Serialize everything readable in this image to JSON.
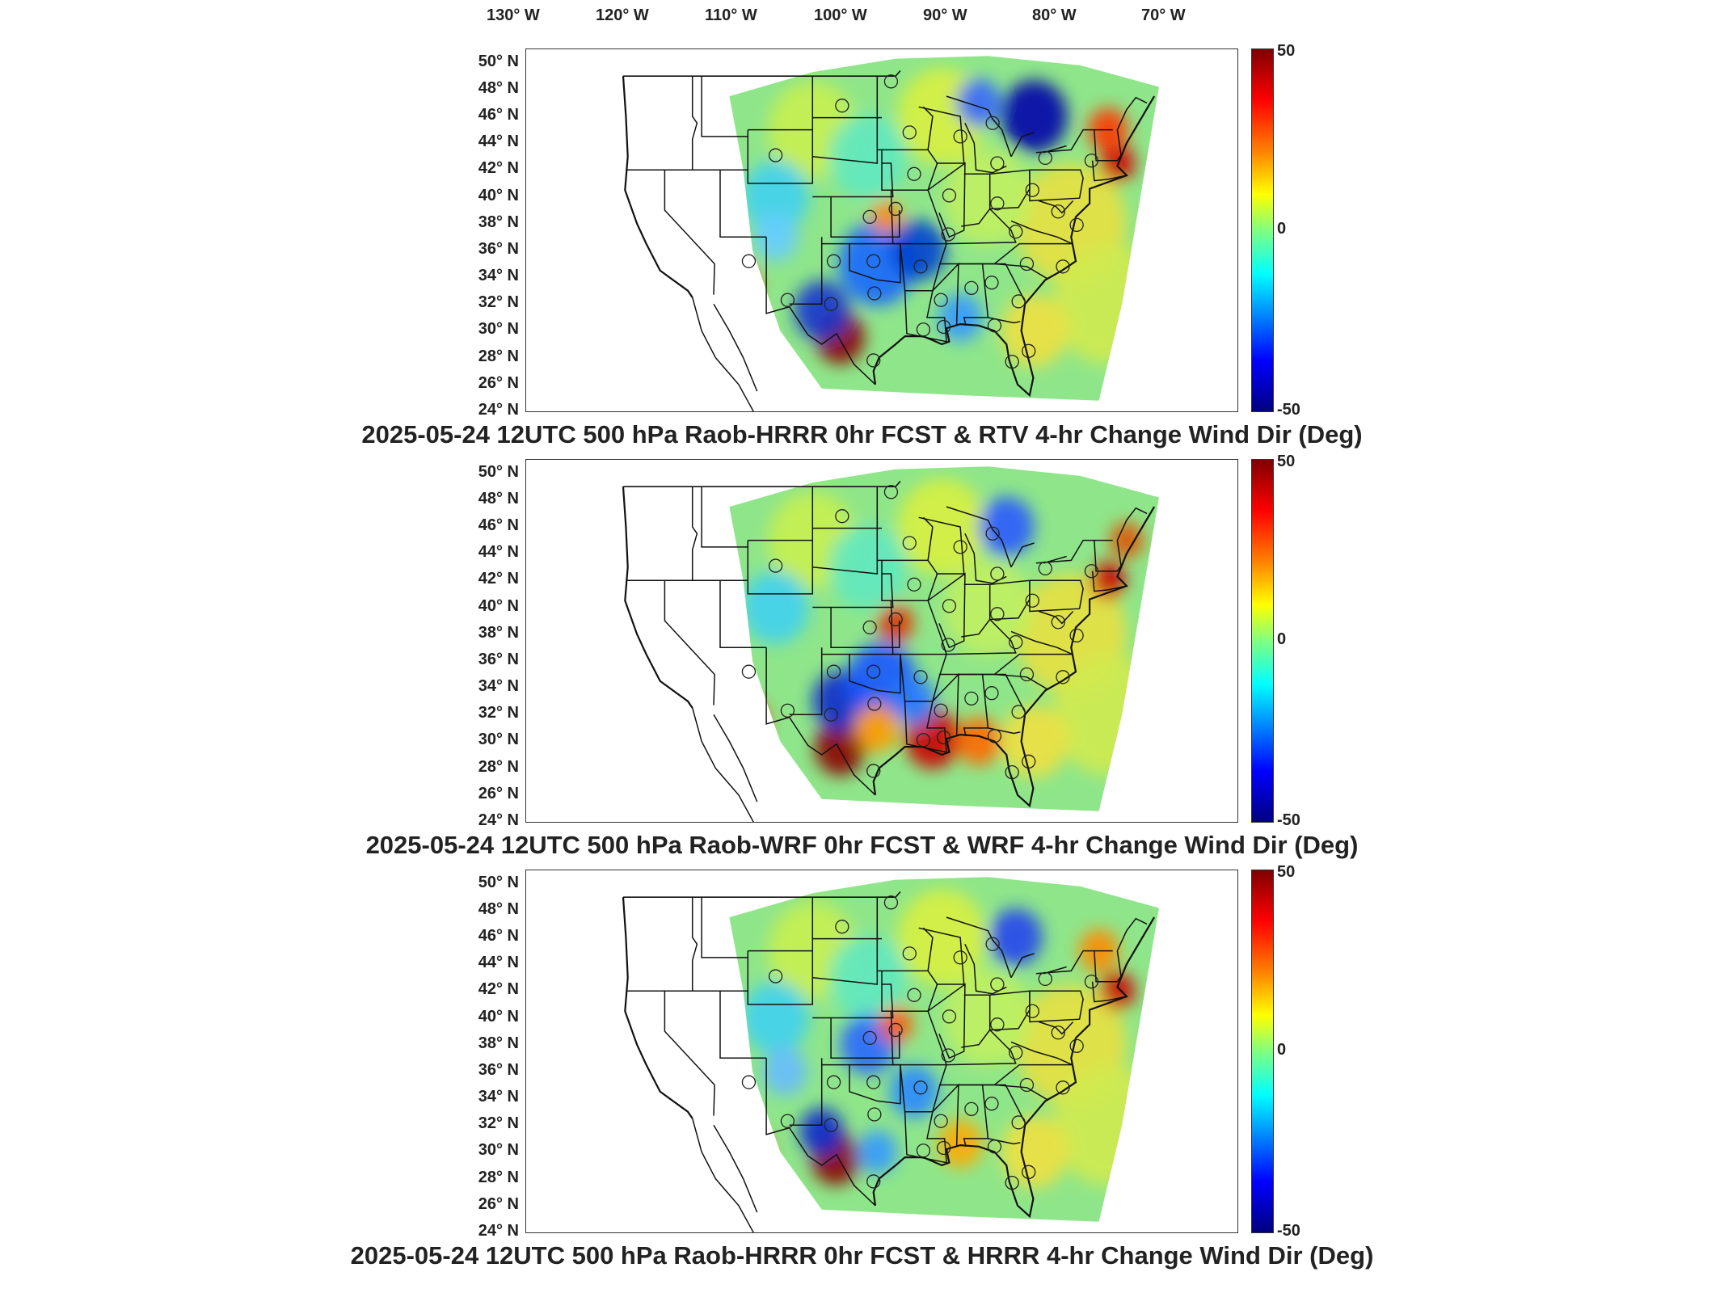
{
  "lon_labels": [
    "130° W",
    "120° W",
    "110° W",
    "100° W",
    "90° W",
    "80° W",
    "70° W"
  ],
  "lat_labels": [
    "50° N",
    "48° N",
    "46° N",
    "44° N",
    "42° N",
    "40° N",
    "38° N",
    "36° N",
    "34° N",
    "32° N",
    "30° N",
    "28° N",
    "26° N",
    "24° N"
  ],
  "colorbar": {
    "max": "50",
    "mid": "0",
    "min": "-50",
    "colors": [
      "#800000",
      "#ff0000",
      "#ff8000",
      "#ffff00",
      "#80ff80",
      "#00ffff",
      "#0080ff",
      "#0000ff",
      "#000080"
    ]
  },
  "panels": [
    {
      "title": "2025-05-24 12UTC 500 hPa Raob-HRRR 0hr FCST & RTV 4-hr Change Wind Dir (Deg)"
    },
    {
      "title": "2025-05-24 12UTC 500 hPa Raob-WRF 0hr FCST & WRF 4-hr Change Wind Dir (Deg)"
    },
    {
      "title": "2025-05-24 12UTC 500 hPa Raob-HRRR 0hr FCST & HRRR 4-hr Change Wind Dir (Deg)"
    }
  ]
}
